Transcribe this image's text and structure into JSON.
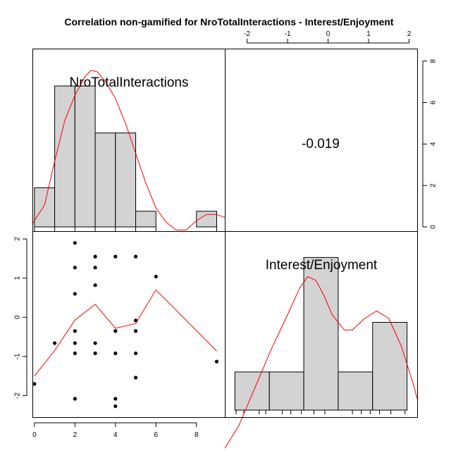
{
  "chart_data": {
    "type": "scatter",
    "title": "Correlation non-gamified for NroTotalInteractions - Interest/Enjoyment",
    "variables": [
      "NroTotalInteractions",
      "Interest/Enjoyment"
    ],
    "correlation_label": "-0.019",
    "colors": {
      "hist_fill": "#d3d3d3",
      "density": "#ff0000",
      "points": "#000000",
      "frame": "#000000"
    },
    "axes": {
      "bottom": {
        "variable": "NroTotalInteractions",
        "lim": [
          -0.1,
          9.4
        ],
        "ticks": [
          0,
          2,
          4,
          6,
          8
        ],
        "tick_labels": [
          "0",
          "2",
          "4",
          "6",
          "8"
        ]
      },
      "left": {
        "variable": "Interest/Enjoyment",
        "lim": [
          -2.55,
          2.2
        ],
        "ticks": [
          -2,
          -1,
          0,
          1,
          2
        ],
        "tick_labels": [
          "-2",
          "-1",
          "0",
          "1",
          "2"
        ]
      },
      "top": {
        "variable": "Interest/Enjoyment",
        "lim": [
          -2.55,
          2.2
        ],
        "ticks": [
          -2,
          -1,
          0,
          1,
          2
        ],
        "tick_labels": [
          "-2",
          "-1",
          "0",
          "1",
          "2"
        ]
      },
      "right": {
        "lim": [
          -0.2,
          8.6
        ],
        "ticks": [
          0,
          2,
          4,
          6,
          8
        ],
        "tick_labels": [
          "0",
          "2",
          "4",
          "6",
          "8"
        ]
      }
    },
    "histogram_x": {
      "variable": "NroTotalInteractions",
      "breaks": [
        0,
        1,
        2,
        3,
        4,
        5,
        6,
        7,
        8,
        9
      ],
      "heights": [
        0.25,
        0.9,
        0.9,
        0.6,
        0.6,
        0.1,
        0,
        0,
        0.1
      ],
      "density_curve": [
        [
          -0.1,
          0.02
        ],
        [
          0.5,
          0.14
        ],
        [
          1.0,
          0.42
        ],
        [
          1.5,
          0.68
        ],
        [
          2.0,
          0.84
        ],
        [
          2.5,
          0.96
        ],
        [
          2.8,
          1.0
        ],
        [
          3.1,
          0.99
        ],
        [
          3.5,
          0.93
        ],
        [
          4.0,
          0.82
        ],
        [
          4.5,
          0.66
        ],
        [
          5.0,
          0.47
        ],
        [
          5.5,
          0.28
        ],
        [
          6.0,
          0.12
        ],
        [
          6.5,
          0.03
        ],
        [
          7.0,
          -0.02
        ],
        [
          7.5,
          -0.02
        ],
        [
          8.0,
          0.04
        ],
        [
          8.5,
          0.08
        ],
        [
          9.0,
          0.08
        ],
        [
          9.4,
          0.06
        ]
      ],
      "rug": [
        0,
        1,
        2,
        3,
        4,
        5,
        6,
        9
      ]
    },
    "histogram_y": {
      "variable": "Interest/Enjoyment",
      "breaks": [
        -2.3,
        -1.45,
        -0.6,
        0.25,
        1.1,
        1.95
      ],
      "heights": [
        0.1,
        0.1,
        0.4,
        0.1,
        0.23
      ],
      "density_curve": [
        [
          -2.55,
          -0.1
        ],
        [
          -2.2,
          -0.04
        ],
        [
          -1.8,
          0.06
        ],
        [
          -1.4,
          0.16
        ],
        [
          -1.0,
          0.25
        ],
        [
          -0.7,
          0.32
        ],
        [
          -0.5,
          0.35
        ],
        [
          -0.3,
          0.34
        ],
        [
          -0.1,
          0.3
        ],
        [
          0.1,
          0.25
        ],
        [
          0.4,
          0.21
        ],
        [
          0.6,
          0.21
        ],
        [
          0.9,
          0.24
        ],
        [
          1.2,
          0.26
        ],
        [
          1.5,
          0.24
        ],
        [
          1.8,
          0.17
        ],
        [
          2.1,
          0.07
        ],
        [
          2.2,
          0.03
        ]
      ],
      "rug": [
        -2.27,
        -2.08,
        -1.7,
        -1.54,
        -1.13,
        -0.92,
        -0.66,
        -0.35,
        -0.08,
        0.6,
        0.82,
        1.04,
        1.27,
        1.55,
        1.9
      ]
    },
    "scatter": {
      "points": [
        [
          0,
          -1.7
        ],
        [
          1,
          -0.66
        ],
        [
          2,
          1.9
        ],
        [
          2,
          1.27
        ],
        [
          2,
          0.6
        ],
        [
          2,
          -0.35
        ],
        [
          2,
          -0.66
        ],
        [
          2,
          -0.92
        ],
        [
          2,
          -2.08
        ],
        [
          3,
          1.55
        ],
        [
          3,
          1.27
        ],
        [
          3,
          0.82
        ],
        [
          3,
          -0.66
        ],
        [
          3,
          -0.92
        ],
        [
          4,
          1.55
        ],
        [
          4,
          -0.35
        ],
        [
          4,
          -0.92
        ],
        [
          4,
          -2.08
        ],
        [
          4,
          -2.27
        ],
        [
          5,
          1.55
        ],
        [
          5,
          -0.08
        ],
        [
          5,
          -0.35
        ],
        [
          5,
          -0.92
        ],
        [
          5,
          -1.54
        ],
        [
          6,
          1.04
        ],
        [
          9,
          -1.13
        ]
      ],
      "smooth_line": [
        [
          0,
          -1.5
        ],
        [
          1,
          -0.85
        ],
        [
          2,
          -0.07
        ],
        [
          3,
          0.33
        ],
        [
          4,
          -0.28
        ],
        [
          5,
          -0.16
        ],
        [
          6,
          0.7
        ],
        [
          9,
          -0.86
        ]
      ]
    }
  }
}
